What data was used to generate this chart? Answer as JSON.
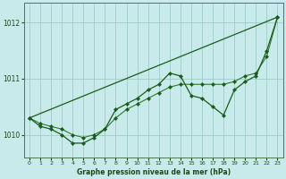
{
  "x": [
    0,
    1,
    2,
    3,
    4,
    5,
    6,
    7,
    8,
    9,
    10,
    11,
    12,
    13,
    14,
    15,
    16,
    17,
    18,
    19,
    20,
    21,
    22,
    23
  ],
  "series_jagged": [
    1010.3,
    1010.15,
    1010.1,
    1010.0,
    1009.85,
    1009.85,
    1009.95,
    1010.1,
    1010.45,
    1010.55,
    1010.65,
    1010.8,
    1010.9,
    1011.1,
    1011.05,
    1010.7,
    1010.65,
    1010.5,
    1010.35,
    1010.8,
    1010.95,
    1011.05,
    1011.5,
    1012.1
  ],
  "series_smooth": [
    1010.3,
    1010.2,
    1010.15,
    1010.1,
    1010.0,
    1009.95,
    1010.0,
    1010.1,
    1010.3,
    1010.45,
    1010.55,
    1010.65,
    1010.75,
    1010.85,
    1010.9,
    1010.9,
    1010.9,
    1010.9,
    1010.9,
    1010.95,
    1011.05,
    1011.1,
    1011.4,
    1012.1
  ],
  "trend_line": [
    [
      0,
      1010.3
    ],
    [
      23,
      1012.1
    ]
  ],
  "color_dark": "#1a5c1a",
  "color_mid": "#2d7a2d",
  "background": "#c8eaea",
  "grid_color": "#98c4c4",
  "text_color": "#1a4a1a",
  "ylim": [
    1009.6,
    1012.35
  ],
  "yticks": [
    1010,
    1011,
    1012
  ],
  "xlim": [
    -0.5,
    23.5
  ],
  "xlabel": "Graphe pression niveau de la mer (hPa)"
}
